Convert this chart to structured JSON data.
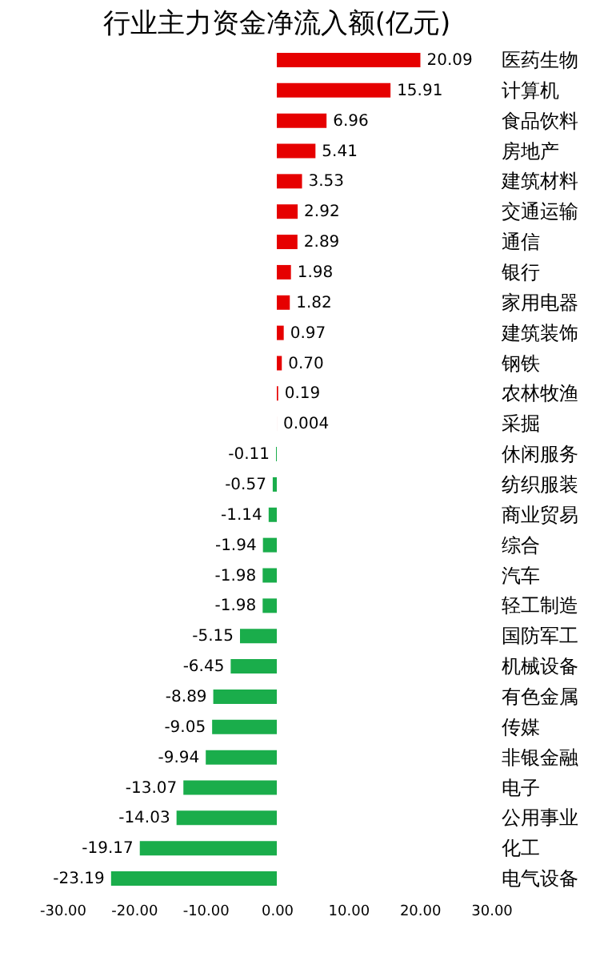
{
  "chart_data": {
    "type": "bar",
    "orientation": "horizontal",
    "title": "行业主力资金净流入额(亿元)",
    "categories": [
      "医药生物",
      "计算机",
      "食品饮料",
      "房地产",
      "建筑材料",
      "交通运输",
      "通信",
      "银行",
      "家用电器",
      "建筑装饰",
      "钢铁",
      "农林牧渔",
      "采掘",
      "休闲服务",
      "纺织服装",
      "商业贸易",
      "综合",
      "汽车",
      "轻工制造",
      "国防军工",
      "机械设备",
      "有色金属",
      "传媒",
      "非银金融",
      "电子",
      "公用事业",
      "化工",
      "电气设备"
    ],
    "values": [
      20.09,
      15.91,
      6.96,
      5.41,
      3.53,
      2.92,
      2.89,
      1.98,
      1.82,
      0.97,
      0.7,
      0.19,
      0.004,
      -0.11,
      -0.57,
      -1.14,
      -1.94,
      -1.98,
      -1.98,
      -5.15,
      -6.45,
      -8.89,
      -9.05,
      -9.94,
      -13.07,
      -14.03,
      -19.17,
      -23.19
    ],
    "value_labels": [
      "20.09",
      "15.91",
      "6.96",
      "5.41",
      "3.53",
      "2.92",
      "2.89",
      "1.98",
      "1.82",
      "0.97",
      "0.70",
      "0.19",
      "0.004",
      "-0.11",
      "-0.57",
      "-1.14",
      "-1.94",
      "-1.98",
      "-1.98",
      "-5.15",
      "-6.45",
      "-8.89",
      "-9.05",
      "-9.94",
      "-13.07",
      "-14.03",
      "-19.17",
      "-23.19"
    ],
    "colors": [
      "#e60000",
      "#e60000",
      "#e60000",
      "#e60000",
      "#e60000",
      "#e60000",
      "#e60000",
      "#e60000",
      "#e60000",
      "#e60000",
      "#e60000",
      "#e60000",
      "#e60000",
      "#1aad4b",
      "#1aad4b",
      "#1aad4b",
      "#1aad4b",
      "#1aad4b",
      "#1aad4b",
      "#1aad4b",
      "#1aad4b",
      "#1aad4b",
      "#1aad4b",
      "#1aad4b",
      "#1aad4b",
      "#1aad4b",
      "#1aad4b",
      "#1aad4b"
    ],
    "xlim": [
      -30,
      30
    ],
    "xticks": [
      {
        "value": -30,
        "label": "-30.00"
      },
      {
        "value": -20,
        "label": "-20.00"
      },
      {
        "value": -10,
        "label": "-10.00"
      },
      {
        "value": 0,
        "label": "0.00"
      },
      {
        "value": 10,
        "label": "10.00"
      },
      {
        "value": 20,
        "label": "20.00"
      },
      {
        "value": 30,
        "label": "30.00"
      }
    ],
    "grid": false
  }
}
